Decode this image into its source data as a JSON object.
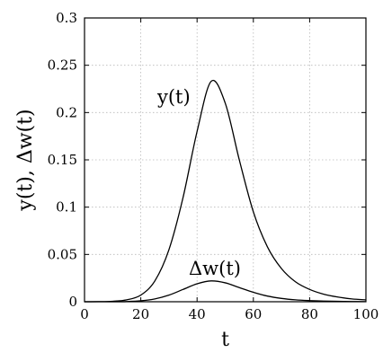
{
  "chart_data": {
    "type": "line",
    "xlabel": "t",
    "ylabel": "y(t), Δw(t)",
    "xlim": [
      0,
      100
    ],
    "ylim": [
      0,
      0.3
    ],
    "grid": true,
    "x_ticks": [
      0,
      20,
      40,
      60,
      80,
      100
    ],
    "y_ticks": [
      0,
      0.05,
      0.1,
      0.15,
      0.2,
      0.25,
      0.3
    ],
    "x_tick_labels": [
      "0",
      "20",
      "40",
      "60",
      "80",
      "100"
    ],
    "y_tick_labels": [
      "0",
      "0.05",
      "0.1",
      "0.15",
      "0.2",
      "0.25",
      "0.3"
    ],
    "x": [
      0,
      5,
      10,
      15,
      20,
      25,
      30,
      35,
      40,
      45,
      50,
      55,
      60,
      65,
      70,
      75,
      80,
      85,
      90,
      95,
      100
    ],
    "series": [
      {
        "name": "y(t)",
        "values": [
          0.0,
          0.0001,
          0.0005,
          0.002,
          0.007,
          0.022,
          0.055,
          0.11,
          0.18,
          0.233,
          0.21,
          0.15,
          0.095,
          0.058,
          0.035,
          0.021,
          0.013,
          0.008,
          0.005,
          0.003,
          0.002
        ]
      },
      {
        "name": "Δw(t)",
        "values": [
          0.0,
          0.0,
          0.0,
          0.0002,
          0.001,
          0.003,
          0.007,
          0.013,
          0.019,
          0.022,
          0.02,
          0.015,
          0.01,
          0.006,
          0.0035,
          0.002,
          0.0012,
          0.0007,
          0.0004,
          0.0002,
          0.0001
        ]
      }
    ],
    "annotations": [
      {
        "text": "y(t)",
        "series": 0
      },
      {
        "text": "Δw(t)",
        "series": 1
      }
    ]
  }
}
